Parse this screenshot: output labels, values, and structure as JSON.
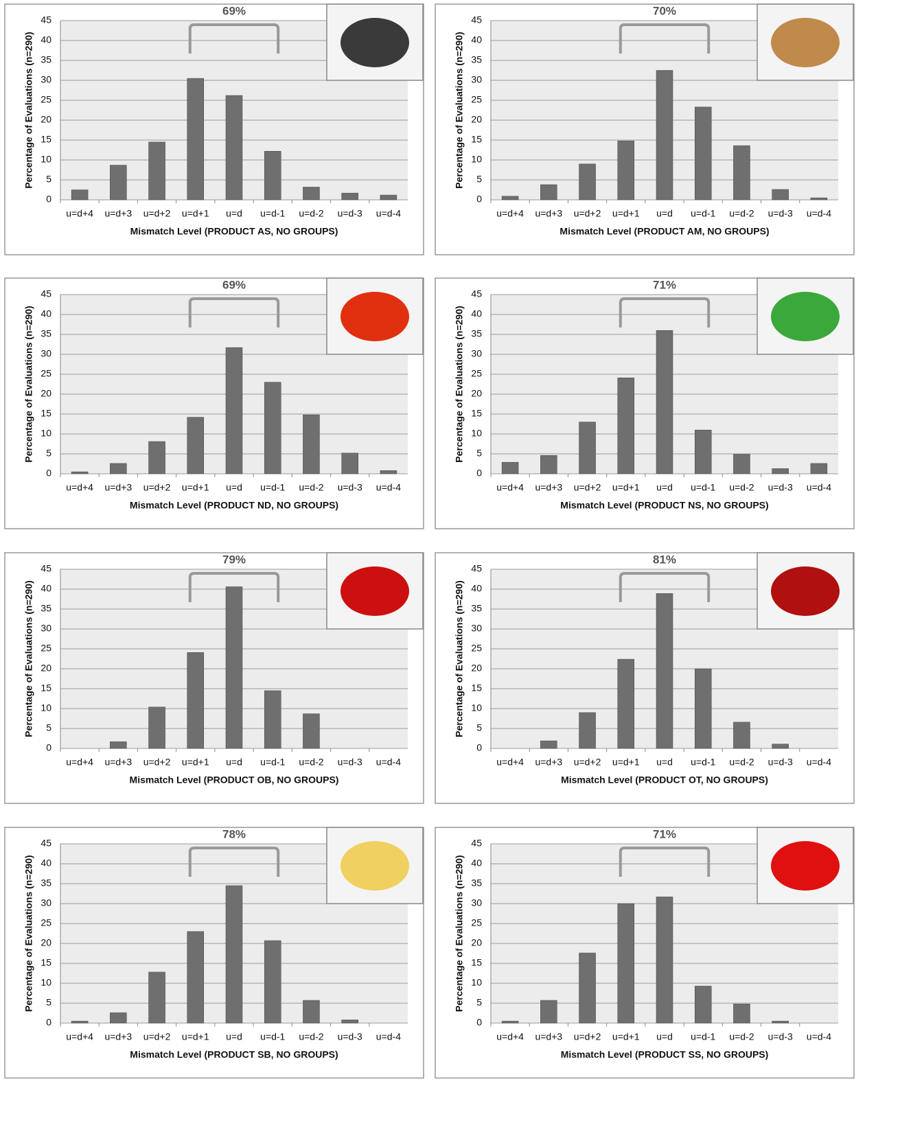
{
  "chart_data": [
    {
      "type": "bar",
      "annotation": "69%",
      "y_label": "Percentage of Evaluations (n=290)",
      "x_label": "Mismatch Level (PRODUCT AS, NO GROUPS)",
      "categories": [
        "u=d+4",
        "u=d+3",
        "u=d+2",
        "u=d+1",
        "u=d",
        "u=d-1",
        "u=d-2",
        "u=d-3",
        "u=d-4"
      ],
      "values": [
        2.5,
        8.7,
        14.5,
        30.5,
        26.2,
        12.2,
        3.2,
        1.7,
        1.2
      ],
      "color": "#6f6f6f",
      "ylim": [
        0,
        45
      ],
      "yticks": [
        0,
        5,
        10,
        15,
        20,
        25,
        30,
        35,
        40,
        45
      ],
      "grid": true
    },
    {
      "type": "bar",
      "annotation": "70%",
      "y_label": "Percentage of Evaluations (n=290)",
      "x_label": "Mismatch Level (PRODUCT AM, NO GROUPS)",
      "categories": [
        "u=d+4",
        "u=d+3",
        "u=d+2",
        "u=d+1",
        "u=d",
        "u=d-1",
        "u=d-2",
        "u=d-3",
        "u=d-4"
      ],
      "values": [
        0.9,
        3.8,
        9.0,
        14.8,
        32.5,
        23.3,
        13.6,
        2.6,
        0.5
      ],
      "color": "#6f6f6f",
      "ylim": [
        0,
        45
      ],
      "yticks": [
        0,
        5,
        10,
        15,
        20,
        25,
        30,
        35,
        40,
        45
      ],
      "grid": true
    },
    {
      "type": "bar",
      "annotation": "69%",
      "y_label": "Percentage of Evaluations (n=290)",
      "x_label": "Mismatch Level (PRODUCT ND, NO GROUPS)",
      "categories": [
        "u=d+4",
        "u=d+3",
        "u=d+2",
        "u=d+1",
        "u=d",
        "u=d-1",
        "u=d-2",
        "u=d-3",
        "u=d-4"
      ],
      "values": [
        0.5,
        2.6,
        8.1,
        14.2,
        31.7,
        23.0,
        14.8,
        5.2,
        0.8
      ],
      "color": "#6f6f6f",
      "ylim": [
        0,
        45
      ],
      "yticks": [
        0,
        5,
        10,
        15,
        20,
        25,
        30,
        35,
        40,
        45
      ],
      "grid": true
    },
    {
      "type": "bar",
      "annotation": "71%",
      "y_label": "Percentage of Evaluations (n=290)",
      "x_label": "Mismatch Level (PRODUCT NS, NO GROUPS)",
      "categories": [
        "u=d+4",
        "u=d+3",
        "u=d+2",
        "u=d+1",
        "u=d",
        "u=d-1",
        "u=d-2",
        "u=d-3",
        "u=d-4"
      ],
      "values": [
        2.9,
        4.6,
        13.0,
        24.1,
        36.0,
        11.0,
        4.9,
        1.3,
        2.6
      ],
      "color": "#6f6f6f",
      "ylim": [
        0,
        45
      ],
      "yticks": [
        0,
        5,
        10,
        15,
        20,
        25,
        30,
        35,
        40,
        45
      ],
      "grid": true
    },
    {
      "type": "bar",
      "annotation": "79%",
      "y_label": "Percentage of Evaluations (n=290)",
      "x_label": "Mismatch Level (PRODUCT OB, NO GROUPS)",
      "categories": [
        "u=d+4",
        "u=d+3",
        "u=d+2",
        "u=d+1",
        "u=d",
        "u=d-1",
        "u=d-2",
        "u=d-3",
        "u=d-4"
      ],
      "values": [
        0,
        1.7,
        10.4,
        24.1,
        40.6,
        14.5,
        8.7,
        0,
        0
      ],
      "color": "#6f6f6f",
      "ylim": [
        0,
        45
      ],
      "yticks": [
        0,
        5,
        10,
        15,
        20,
        25,
        30,
        35,
        40,
        45
      ],
      "grid": true
    },
    {
      "type": "bar",
      "annotation": "81%",
      "y_label": "Percentage of Evaluations (n=290)",
      "x_label": "Mismatch Level (PRODUCT OT, NO GROUPS)",
      "categories": [
        "u=d+4",
        "u=d+3",
        "u=d+2",
        "u=d+1",
        "u=d",
        "u=d-1",
        "u=d-2",
        "u=d-3",
        "u=d-4"
      ],
      "values": [
        0,
        1.9,
        9.0,
        22.4,
        38.9,
        20.0,
        6.6,
        1.1,
        0
      ],
      "color": "#6f6f6f",
      "ylim": [
        0,
        45
      ],
      "yticks": [
        0,
        5,
        10,
        15,
        20,
        25,
        30,
        35,
        40,
        45
      ],
      "grid": true
    },
    {
      "type": "bar",
      "annotation": "78%",
      "y_label": "Percentage of Evaluations (n=290)",
      "x_label": "Mismatch Level (PRODUCT SB, NO GROUPS)",
      "categories": [
        "u=d+4",
        "u=d+3",
        "u=d+2",
        "u=d+1",
        "u=d",
        "u=d-1",
        "u=d-2",
        "u=d-3",
        "u=d-4"
      ],
      "values": [
        0.5,
        2.6,
        12.8,
        23.0,
        34.5,
        20.7,
        5.7,
        0.8,
        0
      ],
      "color": "#6f6f6f",
      "ylim": [
        0,
        45
      ],
      "yticks": [
        0,
        5,
        10,
        15,
        20,
        25,
        30,
        35,
        40,
        45
      ],
      "grid": true
    },
    {
      "type": "bar",
      "annotation": "71%",
      "y_label": "Percentage of Evaluations (n=290)",
      "x_label": "Mismatch Level (PRODUCT SS, NO GROUPS)",
      "categories": [
        "u=d+4",
        "u=d+3",
        "u=d+2",
        "u=d+1",
        "u=d",
        "u=d-1",
        "u=d-2",
        "u=d-3",
        "u=d-4"
      ],
      "values": [
        0.5,
        5.7,
        17.6,
        30.0,
        31.7,
        9.3,
        4.8,
        0.5,
        0
      ],
      "color": "#6f6f6f",
      "ylim": [
        0,
        45
      ],
      "yticks": [
        0,
        5,
        10,
        15,
        20,
        25,
        30,
        35,
        40,
        45
      ],
      "grid": true
    }
  ]
}
